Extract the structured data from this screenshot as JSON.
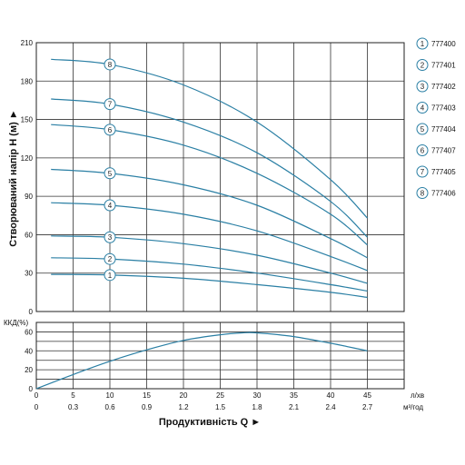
{
  "chart_data": [
    {
      "type": "line",
      "ylabel": "Створюваний напір H (м) ►",
      "ylim": [
        0,
        210
      ],
      "yticks": [
        0,
        30,
        60,
        90,
        120,
        150,
        180,
        210
      ],
      "xlim": [
        0,
        50
      ],
      "grid": true,
      "legend_position": "right",
      "line_color": "#2a7fa4",
      "series": [
        {
          "name": "777400",
          "marker": "1",
          "x": [
            2,
            10,
            20,
            30,
            40,
            45
          ],
          "y": [
            29,
            28.5,
            26,
            21,
            15,
            11
          ]
        },
        {
          "name": "777401",
          "marker": "2",
          "x": [
            2,
            10,
            20,
            30,
            40,
            45
          ],
          "y": [
            42,
            41,
            37,
            30,
            21,
            16
          ]
        },
        {
          "name": "777402",
          "marker": "3",
          "x": [
            2,
            10,
            20,
            30,
            40,
            45
          ],
          "y": [
            59,
            58,
            53,
            44,
            30,
            22
          ]
        },
        {
          "name": "777403",
          "marker": "4",
          "x": [
            2,
            10,
            20,
            30,
            40,
            45
          ],
          "y": [
            85,
            83,
            76,
            63,
            43,
            32
          ]
        },
        {
          "name": "777404",
          "marker": "5",
          "x": [
            2,
            10,
            20,
            30,
            40,
            45
          ],
          "y": [
            111,
            108,
            99,
            83,
            57,
            42
          ]
        },
        {
          "name": "777407",
          "marker": "6",
          "x": [
            2,
            10,
            20,
            30,
            40,
            45
          ],
          "y": [
            146,
            142,
            130,
            108,
            76,
            52
          ]
        },
        {
          "name": "777405",
          "marker": "7",
          "x": [
            2,
            10,
            20,
            30,
            40,
            45
          ],
          "y": [
            166,
            162,
            148,
            124,
            86,
            58
          ]
        },
        {
          "name": "777406",
          "marker": "8",
          "x": [
            2,
            10,
            20,
            30,
            40,
            45
          ],
          "y": [
            197,
            193,
            177,
            148,
            103,
            73
          ]
        }
      ],
      "marker_x": 10
    },
    {
      "type": "line",
      "ylabel": "ККД(%)",
      "ylim": [
        0,
        70
      ],
      "yticks": [
        0,
        20,
        40,
        60
      ],
      "xlim": [
        0,
        50
      ],
      "grid": true,
      "series": [
        {
          "name": "",
          "x": [
            0,
            5,
            10,
            15,
            20,
            25,
            28,
            30,
            35,
            40,
            45
          ],
          "y": [
            0,
            15,
            29,
            41,
            51,
            57,
            59,
            59,
            55,
            48,
            40
          ]
        }
      ]
    }
  ],
  "x_axis": {
    "primary_ticks": [
      0,
      5,
      10,
      15,
      20,
      25,
      30,
      35,
      40,
      45
    ],
    "primary_unit": "л/хв",
    "secondary_ticks": [
      "0",
      "0.3",
      "0.6",
      "0.9",
      "1.2",
      "1.5",
      "1.8",
      "2.1",
      "2.4",
      "2.7"
    ],
    "secondary_unit": "м³/год",
    "title": "Продуктивність  Q ►"
  },
  "legend": [
    {
      "num": "1",
      "label": "777400"
    },
    {
      "num": "2",
      "label": "777401"
    },
    {
      "num": "3",
      "label": "777402"
    },
    {
      "num": "4",
      "label": "777403"
    },
    {
      "num": "5",
      "label": "777404"
    },
    {
      "num": "6",
      "label": "777407"
    },
    {
      "num": "7",
      "label": "777405"
    },
    {
      "num": "8",
      "label": "777406"
    }
  ]
}
